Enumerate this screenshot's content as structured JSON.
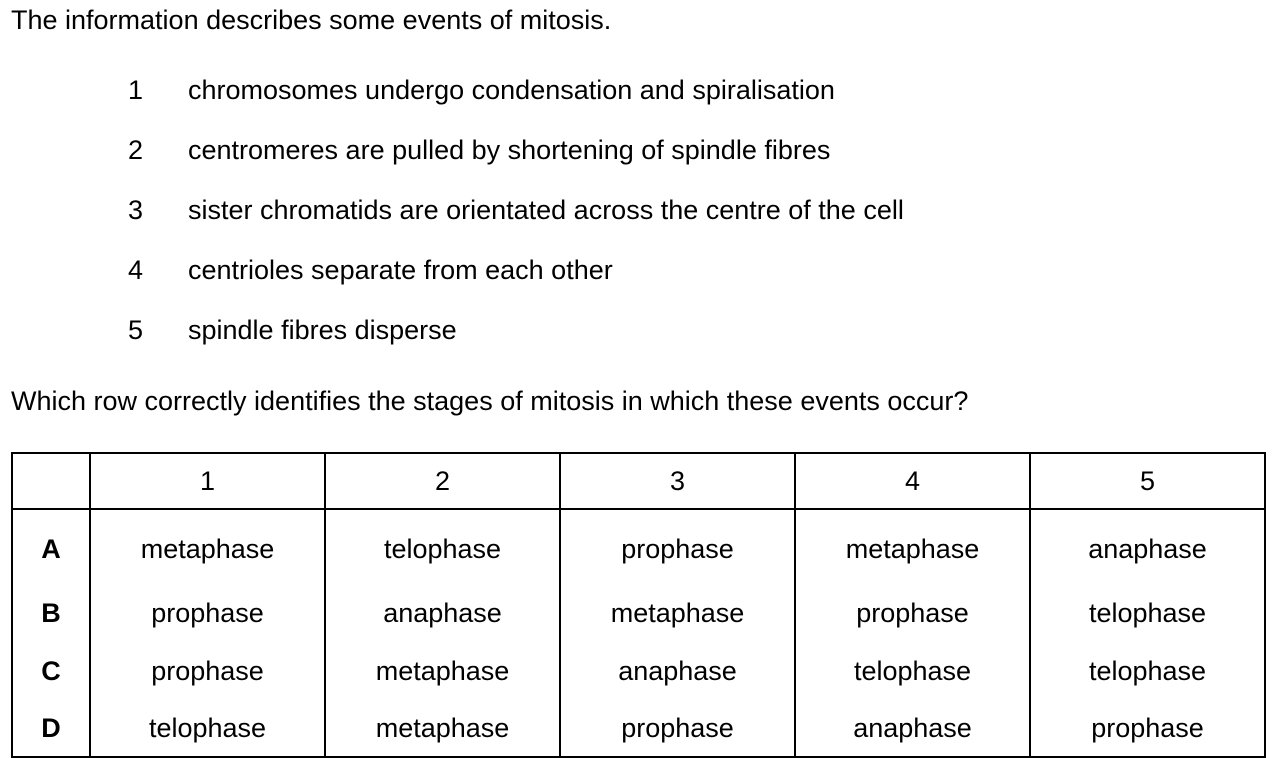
{
  "intro_text": "The information describes some events of mitosis.",
  "events": [
    {
      "number": "1",
      "text": "chromosomes undergo condensation and spiralisation"
    },
    {
      "number": "2",
      "text": "centromeres are pulled by shortening of spindle fibres"
    },
    {
      "number": "3",
      "text": "sister chromatids are orientated across the centre of the cell"
    },
    {
      "number": "4",
      "text": "centrioles separate from each other"
    },
    {
      "number": "5",
      "text": "spindle fibres disperse"
    }
  ],
  "question": "Which row correctly identifies the stages of mitosis in which these events occur?",
  "table": {
    "headers": [
      "1",
      "2",
      "3",
      "4",
      "5"
    ],
    "rows": [
      {
        "label": "A",
        "cells": [
          "metaphase",
          "telophase",
          "prophase",
          "metaphase",
          "anaphase"
        ]
      },
      {
        "label": "B",
        "cells": [
          "prophase",
          "anaphase",
          "metaphase",
          "prophase",
          "telophase"
        ]
      },
      {
        "label": "C",
        "cells": [
          "prophase",
          "metaphase",
          "anaphase",
          "telophase",
          "telophase"
        ]
      },
      {
        "label": "D",
        "cells": [
          "telophase",
          "metaphase",
          "prophase",
          "anaphase",
          "prophase"
        ]
      }
    ]
  }
}
